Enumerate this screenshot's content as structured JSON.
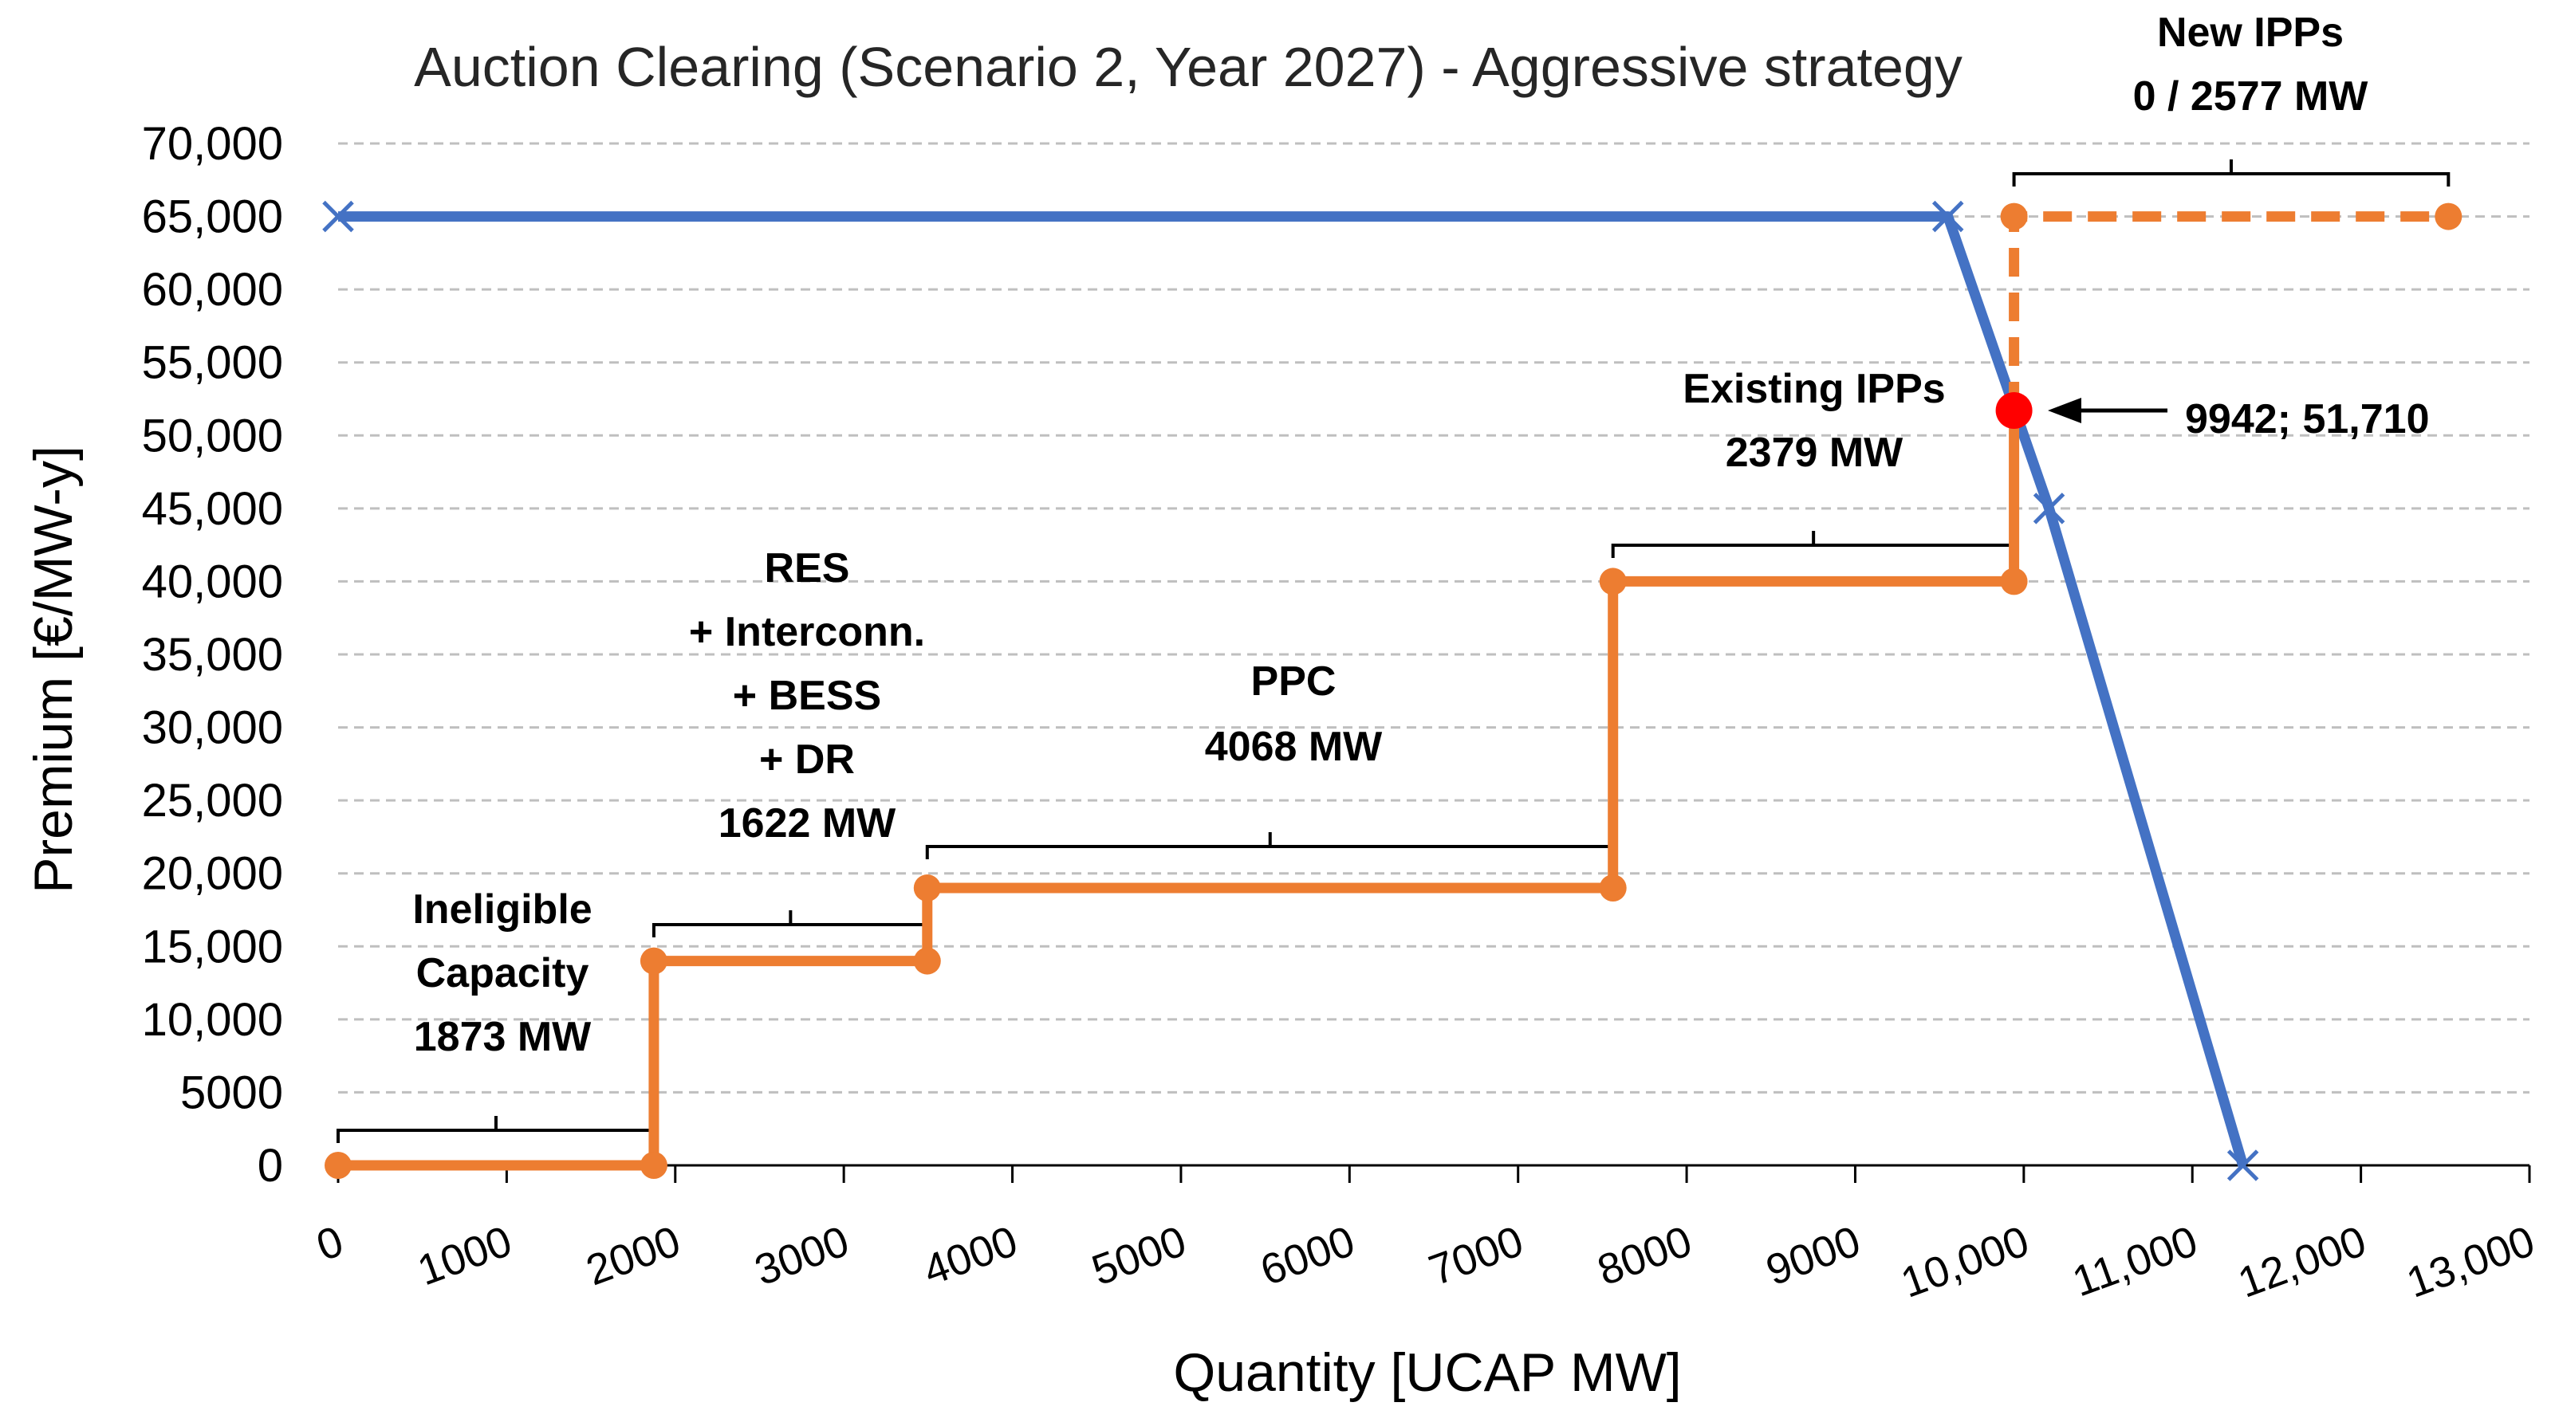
{
  "chart_data": {
    "type": "line",
    "title": "Auction Clearing (Scenario 2, Year 2027) - Aggressive strategy",
    "xlabel": "Quantity [UCAP MW]",
    "ylabel": "Premium [€/MW-y]",
    "xlim": [
      0,
      13000
    ],
    "ylim": [
      0,
      70000
    ],
    "x_ticks": [
      {
        "value": 0,
        "label": "0"
      },
      {
        "value": 1000,
        "label": "1000"
      },
      {
        "value": 2000,
        "label": "2000"
      },
      {
        "value": 3000,
        "label": "3000"
      },
      {
        "value": 4000,
        "label": "4000"
      },
      {
        "value": 5000,
        "label": "5000"
      },
      {
        "value": 6000,
        "label": "6000"
      },
      {
        "value": 7000,
        "label": "7000"
      },
      {
        "value": 8000,
        "label": "8000"
      },
      {
        "value": 9000,
        "label": "9000"
      },
      {
        "value": 10000,
        "label": "10,000"
      },
      {
        "value": 11000,
        "label": "11,000"
      },
      {
        "value": 12000,
        "label": "12,000"
      },
      {
        "value": 13000,
        "label": "13,000"
      }
    ],
    "y_ticks": [
      {
        "value": 0,
        "label": "0"
      },
      {
        "value": 5000,
        "label": "5000"
      },
      {
        "value": 10000,
        "label": "10,000"
      },
      {
        "value": 15000,
        "label": "15,000"
      },
      {
        "value": 20000,
        "label": "20,000"
      },
      {
        "value": 25000,
        "label": "25,000"
      },
      {
        "value": 30000,
        "label": "30,000"
      },
      {
        "value": 35000,
        "label": "35,000"
      },
      {
        "value": 40000,
        "label": "40,000"
      },
      {
        "value": 45000,
        "label": "45,000"
      },
      {
        "value": 50000,
        "label": "50,000"
      },
      {
        "value": 55000,
        "label": "55,000"
      },
      {
        "value": 60000,
        "label": "60,000"
      },
      {
        "value": 65000,
        "label": "65,000"
      },
      {
        "value": 70000,
        "label": "70,000"
      }
    ],
    "grid": true,
    "colors": {
      "demand": "#4472c4",
      "supply": "#ed7d31",
      "clearing": "#ff0000"
    },
    "series": [
      {
        "role": "demand",
        "marker": "x",
        "points": [
          [
            0,
            65000
          ],
          [
            9550,
            65000
          ],
          [
            10150,
            45000
          ],
          [
            11300,
            0
          ]
        ]
      },
      {
        "role": "supply",
        "marker": "circle",
        "points": [
          [
            0,
            0
          ],
          [
            1873,
            0
          ],
          [
            1873,
            14000
          ],
          [
            3495,
            14000
          ],
          [
            3495,
            19000
          ],
          [
            7563,
            19000
          ],
          [
            7563,
            40000
          ],
          [
            9942,
            40000
          ],
          [
            9942,
            51710
          ]
        ]
      },
      {
        "role": "supply-unaccepted",
        "marker": "circle",
        "dashed": true,
        "points": [
          [
            9942,
            51710
          ],
          [
            9942,
            65000
          ],
          [
            12519,
            65000
          ]
        ]
      }
    ],
    "clearing_point": {
      "x": 9942,
      "y": 51710,
      "label": "9942; 51,710"
    },
    "annotations": [
      {
        "lines": [
          "Ineligible",
          "Capacity",
          "1873 MW"
        ],
        "x_start": 0,
        "x_end": 1873
      },
      {
        "lines": [
          "RES",
          "+ Interconn.",
          "+ BESS",
          "+ DR",
          "1622 MW"
        ],
        "x_start": 1873,
        "x_end": 3495
      },
      {
        "lines": [
          "PPC",
          "4068 MW"
        ],
        "x_start": 3495,
        "x_end": 7563
      },
      {
        "lines": [
          "Existing  IPPs",
          "2379 MW"
        ],
        "x_start": 7563,
        "x_end": 9942
      },
      {
        "lines": [
          "New IPPs",
          "0 / 2577 MW"
        ],
        "x_start": 9942,
        "x_end": 12519
      }
    ]
  }
}
